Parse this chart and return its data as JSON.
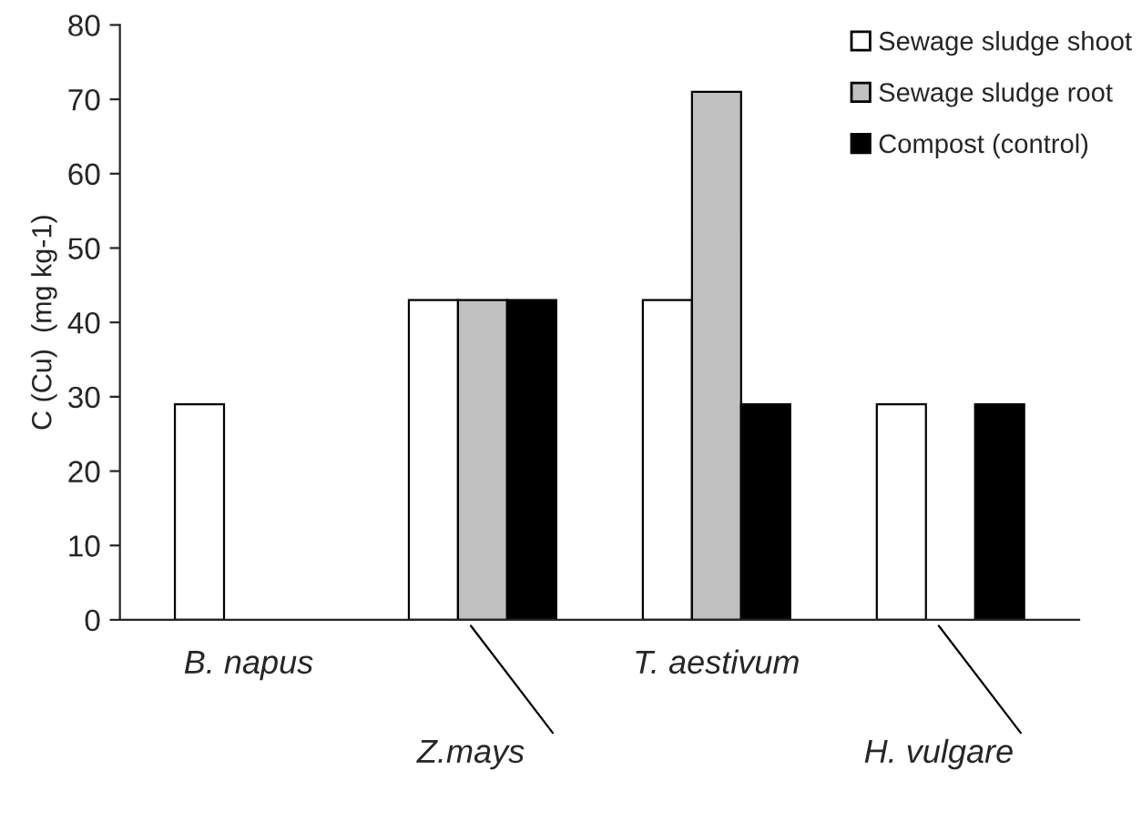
{
  "chart_data": {
    "type": "bar",
    "ylabel": "C (Cu)  (mg kg-1)",
    "categories": [
      "B. napus",
      "Z.mays",
      "T. aestivum",
      "H. vulgare"
    ],
    "series": [
      {
        "name": "Sewage sludge shoot",
        "color": "#ffffff",
        "values": [
          29,
          43,
          43,
          29
        ]
      },
      {
        "name": "Sewage sludge root",
        "color": "#c0c0c0",
        "values": [
          null,
          43,
          71,
          null
        ]
      },
      {
        "name": "Compost (control)",
        "color": "#000000",
        "values": [
          null,
          43,
          29,
          29
        ]
      }
    ],
    "ylim": [
      0,
      80
    ],
    "yticks": [
      0,
      10,
      20,
      30,
      40,
      50,
      60,
      70,
      80
    ],
    "grid": false,
    "legend": "top right"
  }
}
